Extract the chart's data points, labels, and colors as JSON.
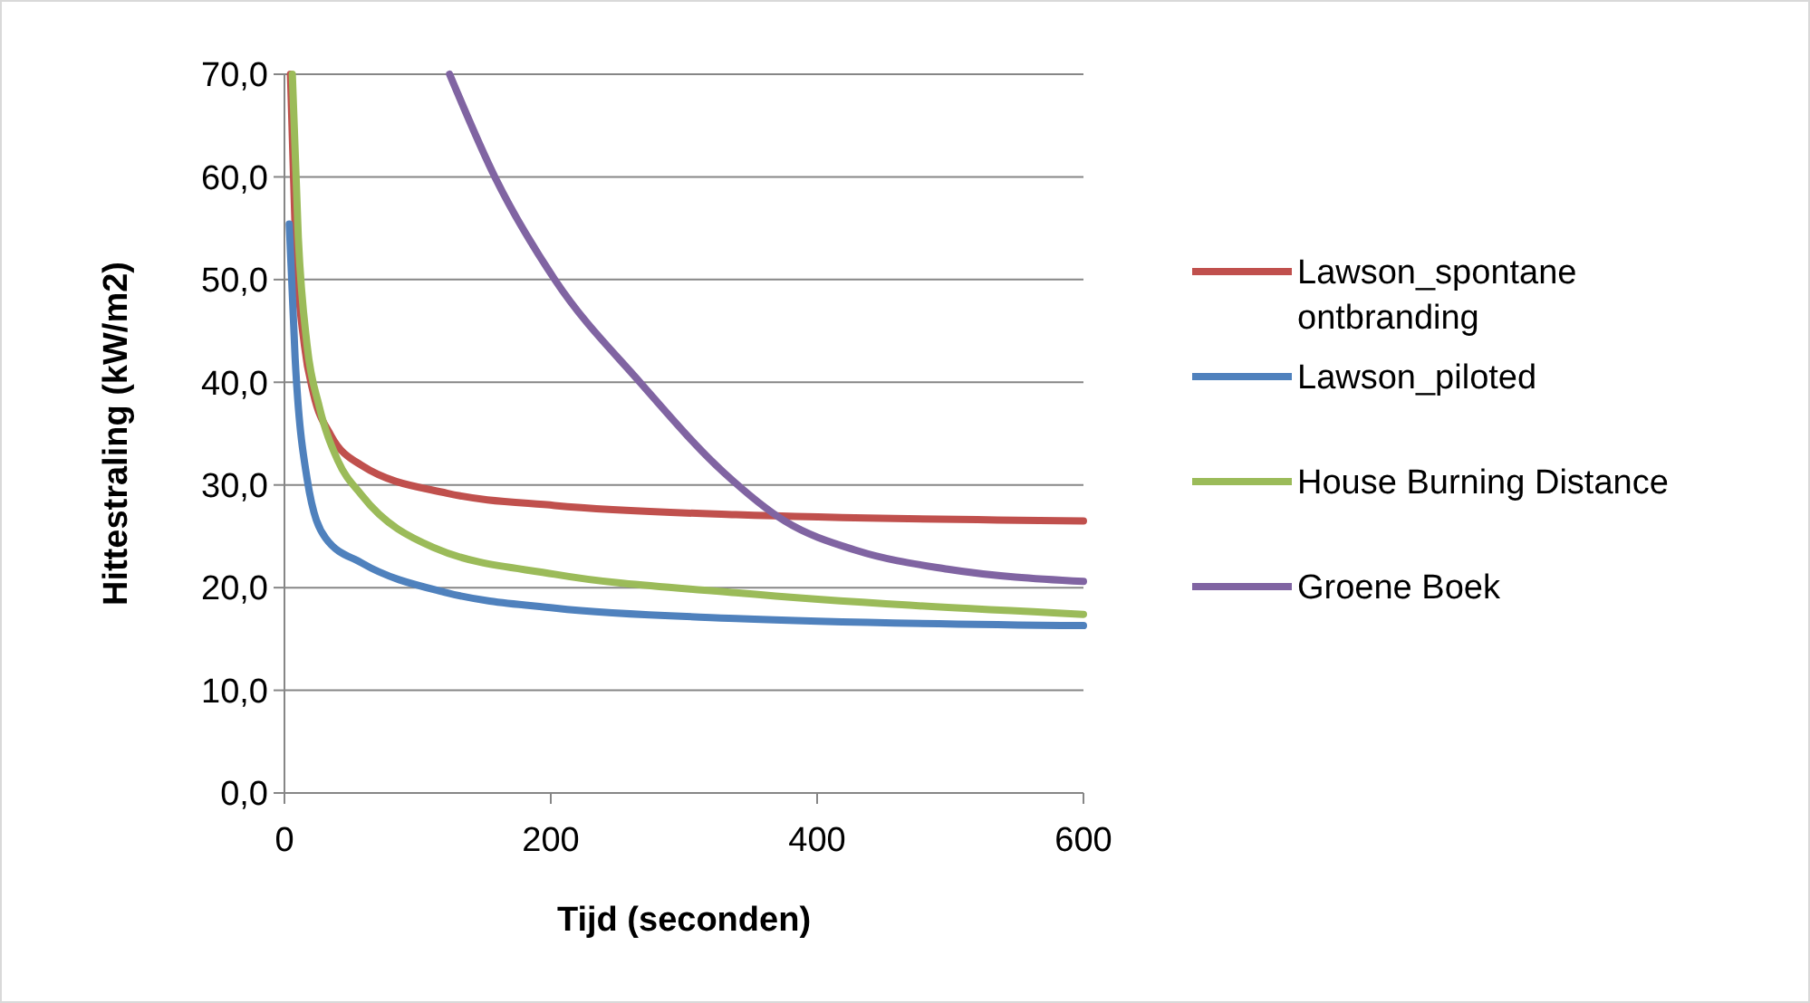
{
  "chart_data": {
    "type": "line",
    "xlabel": "Tijd (seconden)",
    "ylabel": "Hittestraling (kW/m2)",
    "xlim": [
      0,
      600
    ],
    "xticks": [
      0,
      200,
      400,
      600
    ],
    "ylim": [
      0,
      70
    ],
    "yticks": [
      {
        "value": 0,
        "label": "0,0"
      },
      {
        "value": 10,
        "label": "10,0"
      },
      {
        "value": 20,
        "label": "20,0"
      },
      {
        "value": 30,
        "label": "30,0"
      },
      {
        "value": 40,
        "label": "40,0"
      },
      {
        "value": 50,
        "label": "50,0"
      },
      {
        "value": 60,
        "label": "60,0"
      },
      {
        "value": 70,
        "label": "70,0"
      }
    ],
    "grid": "y",
    "legend": "right",
    "line_style": "solid",
    "series": [
      {
        "name": "Lawson_spontane ontbranding",
        "color": "#c0504d",
        "x": [
          4.5,
          8.2,
          15,
          21.8,
          35,
          58,
          122,
          203,
          339,
          600
        ],
        "values": [
          70,
          54.1,
          43.6,
          38.9,
          34.8,
          31.9,
          29.2,
          28.0,
          27.1,
          26.5
        ]
      },
      {
        "name": "Lawson_piloted",
        "color": "#4f81bd",
        "x": [
          3.6,
          8,
          17,
          31,
          58,
          122,
          203,
          339,
          600
        ],
        "values": [
          55.4,
          42.4,
          30.6,
          24.8,
          22.4,
          19.5,
          18.0,
          17.0,
          16.3
        ]
      },
      {
        "name": "House Burning Distance",
        "color": "#9bbb59",
        "x": [
          5.9,
          10.4,
          17,
          26,
          40,
          58,
          112,
          203,
          339,
          600
        ],
        "values": [
          70,
          54.1,
          43.6,
          37.7,
          32.4,
          29.0,
          23.9,
          21.3,
          19.5,
          17.4
        ]
      },
      {
        "name": "Groene Boek",
        "color": "#8064a2",
        "x": [
          124,
          158,
          203,
          267,
          330,
          375.5,
          430,
          498,
          600
        ],
        "values": [
          70,
          60,
          50,
          40,
          31.2,
          26.5,
          23.6,
          21.8,
          20.6
        ]
      }
    ]
  }
}
